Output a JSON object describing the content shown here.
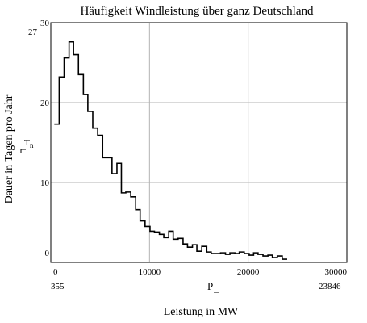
{
  "chart_data": {
    "type": "line",
    "title": "Häufigkeit Windleistung über ganz Deutschland",
    "xlabel": "Leistung in MW",
    "ylabel": "Dauer in Tagen pro Jahr",
    "y_symbol": "T",
    "y_symbol_sub": "n",
    "x_symbol": "P",
    "xlim": [
      0,
      30000
    ],
    "ylim": [
      0,
      30
    ],
    "x_ticks": [
      0,
      10000,
      20000,
      30000
    ],
    "y_ticks": [
      0,
      10,
      20,
      30
    ],
    "x_range_labels": {
      "min": "355",
      "max": "23846"
    },
    "y_extra_label": "27",
    "grid": true,
    "series": [
      {
        "step": true,
        "x": [
          355,
          850,
          1350,
          1850,
          2300,
          2800,
          3300,
          3750,
          4250,
          4750,
          5250,
          5700,
          6200,
          6700,
          7150,
          7600,
          8100,
          8600,
          9050,
          9550,
          10050,
          10500,
          11000,
          11450,
          11950,
          12400,
          12900,
          13400,
          13850,
          14350,
          14800,
          15300,
          15800,
          16250,
          16750,
          17200,
          17700,
          18150,
          18650,
          19100,
          19600,
          20100,
          20550,
          21000,
          21500,
          22000,
          22450,
          22950,
          23450
        ],
        "y": [
          17.3,
          23.2,
          25.6,
          27.6,
          26.0,
          23.5,
          21.0,
          18.9,
          16.8,
          15.9,
          13.1,
          13.1,
          11.1,
          12.4,
          8.7,
          8.8,
          8.2,
          6.6,
          5.2,
          4.5,
          3.9,
          3.8,
          3.5,
          3.1,
          3.9,
          2.9,
          3.0,
          2.3,
          1.9,
          2.2,
          1.4,
          2.0,
          1.3,
          1.1,
          1.1,
          1.2,
          1.0,
          1.2,
          1.1,
          1.3,
          1.1,
          0.9,
          1.2,
          1.0,
          0.8,
          0.9,
          0.6,
          0.8,
          0.4
        ]
      }
    ]
  }
}
